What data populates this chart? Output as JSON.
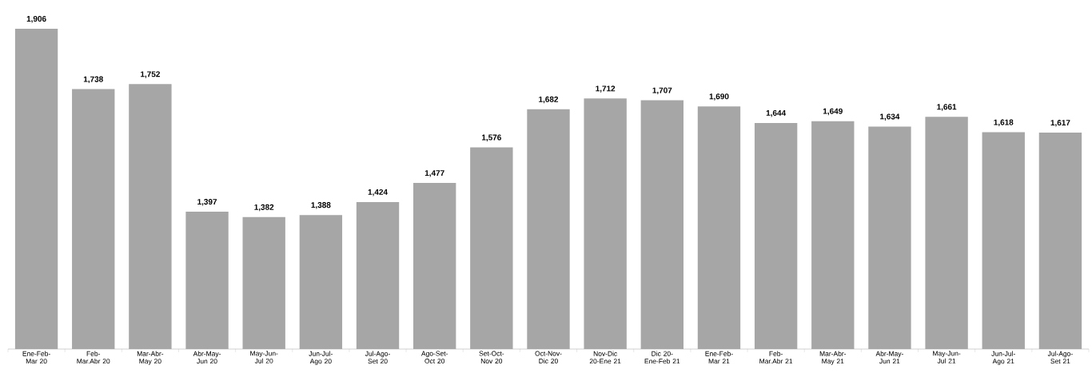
{
  "chart_data": {
    "type": "bar",
    "categories": [
      "Ene-Feb-Mar 20",
      "Feb-Mar.Abr 20",
      "Mar-Abr-May 20",
      "Abr-May-Jun 20",
      "May-Jun-Jul 20",
      "Jun-Jul-Ago 20",
      "Jul-Ago-Set 20",
      "Ago-Set-Oct 20",
      "Set-Oct-Nov 20",
      "Oct-Nov-Dic 20",
      "Nov-Dic 20-Ene 21",
      "Dic 20-Ene-Feb 21",
      "Ene-Feb-Mar 21",
      "Feb-Mar.Abr 21",
      "Mar-Abr-May 21",
      "Abr-May-Jun 21",
      "May-Jun-Jul 21",
      "Jun-Jul-Ago 21",
      "Jul-Ago-Set 21"
    ],
    "values": [
      1906,
      1738,
      1752,
      1397,
      1382,
      1388,
      1424,
      1477,
      1576,
      1682,
      1712,
      1707,
      1690,
      1644,
      1649,
      1634,
      1661,
      1618,
      1617
    ],
    "value_labels": [
      "1,906",
      "1,738",
      "1,752",
      "1,397",
      "1,382",
      "1,388",
      "1,424",
      "1,477",
      "1,576",
      "1,682",
      "1,712",
      "1,707",
      "1,690",
      "1,644",
      "1,649",
      "1,634",
      "1,661",
      "1,618",
      "1,617"
    ],
    "color": "#a6a6a6",
    "ylim": [
      1015,
      1906
    ]
  }
}
